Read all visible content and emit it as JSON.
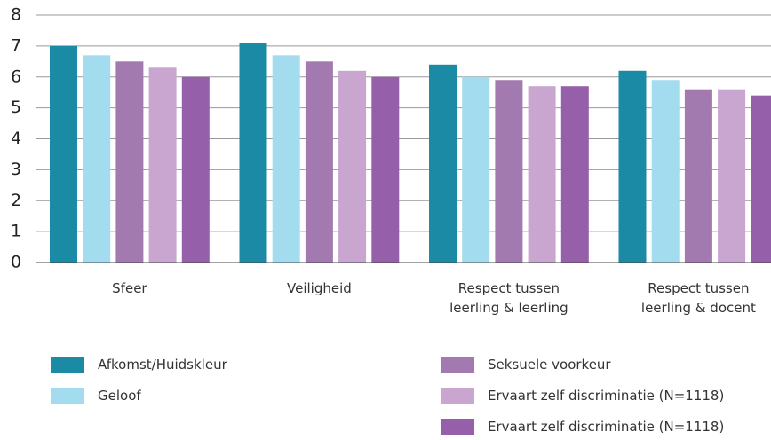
{
  "chart_data": {
    "type": "bar",
    "categories": [
      "Sfeer",
      "Veiligheid",
      "Respect tussen\nleerling & leerling",
      "Respect tussen\nleerling & docent"
    ],
    "series": [
      {
        "name": "Afkomst/Huidskleur",
        "color": "#1a8aa5",
        "values": [
          7.0,
          7.1,
          6.4,
          6.2
        ]
      },
      {
        "name": "Geloof",
        "color": "#a4dcef",
        "values": [
          6.7,
          6.7,
          6.0,
          5.9
        ]
      },
      {
        "name": "Seksuele voorkeur",
        "color": "#a27ab0",
        "values": [
          6.5,
          6.5,
          5.9,
          5.6
        ]
      },
      {
        "name": "Ervaart zelf discriminatie (N=1118)",
        "color": "#c9a6d0",
        "values": [
          6.3,
          6.2,
          5.7,
          5.6
        ]
      },
      {
        "name": "Ervaart zelf discriminatie (N=1118)",
        "color": "#955fa9",
        "values": [
          6.0,
          6.0,
          5.7,
          5.4
        ]
      }
    ],
    "ylim": [
      0,
      8
    ],
    "yticks": [
      0,
      1,
      2,
      3,
      4,
      5,
      6,
      7,
      8
    ],
    "grid": true
  }
}
